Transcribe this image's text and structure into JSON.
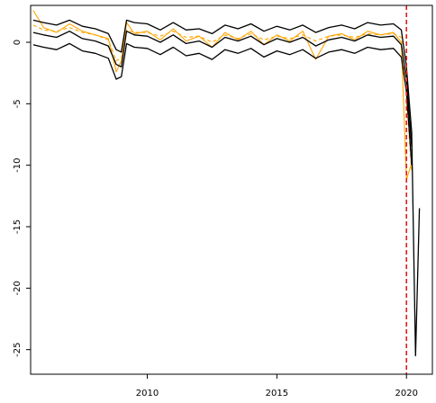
{
  "chart_data": {
    "type": "line",
    "title": "",
    "xlabel": "",
    "ylabel": "",
    "xlim": [
      2005.5,
      2021.0
    ],
    "ylim": [
      -27.0,
      3.0
    ],
    "x_ticks": [
      2010,
      2015,
      2020
    ],
    "x_tick_labels": [
      "2010",
      "2015",
      "2020"
    ],
    "y_ticks": [
      0,
      -5,
      -10,
      -15,
      -20,
      -25
    ],
    "y_tick_labels": [
      "0",
      "-5",
      "-10",
      "-15",
      "-20",
      "-25"
    ],
    "grid": false,
    "legend": "none",
    "vertical_line": {
      "x": 2020.0,
      "color": "#e41a1c",
      "style": "dashed"
    },
    "series": [
      {
        "color": "#ffa500",
        "style": "solid",
        "x": [
          2005.6,
          2006.0,
          2006.5,
          2007.0,
          2007.5,
          2008.0,
          2008.5,
          2008.8,
          2009.0,
          2009.2,
          2009.5,
          2010.0,
          2010.5,
          2011.0,
          2011.5,
          2012.0,
          2012.5,
          2013.0,
          2013.5,
          2014.0,
          2014.5,
          2015.0,
          2015.5,
          2016.0,
          2016.5,
          2017.0,
          2017.5,
          2018.0,
          2018.5,
          2019.0,
          2019.5,
          2019.8,
          2020.0,
          2020.2
        ],
        "y": [
          2.6,
          1.2,
          0.8,
          1.5,
          0.9,
          0.6,
          0.3,
          -2.4,
          -1.5,
          1.6,
          0.7,
          0.9,
          0.2,
          1.1,
          0.1,
          0.5,
          -0.4,
          0.8,
          0.2,
          0.9,
          -0.2,
          0.6,
          0.1,
          0.9,
          -1.4,
          0.5,
          0.7,
          0.2,
          0.9,
          0.6,
          0.8,
          0.0,
          -11.2,
          -9.8
        ]
      },
      {
        "color": "#ffa500",
        "style": "dashed",
        "x": [
          2005.6,
          2006.0,
          2006.5,
          2007.0,
          2007.5,
          2008.0,
          2008.5,
          2008.8,
          2009.0,
          2009.2,
          2009.5,
          2010.0,
          2010.5,
          2011.0,
          2011.5,
          2012.0,
          2012.5,
          2013.0,
          2013.5,
          2014.0,
          2014.5,
          2015.0,
          2015.5,
          2016.0,
          2016.5,
          2017.0,
          2017.5,
          2018.0,
          2018.5,
          2019.0,
          2019.5,
          2019.8,
          2020.0,
          2020.2
        ],
        "y": [
          1.4,
          1.0,
          0.9,
          1.2,
          0.8,
          0.6,
          0.2,
          -1.5,
          -1.3,
          1.0,
          0.8,
          0.8,
          0.5,
          0.9,
          0.4,
          0.5,
          0.0,
          0.6,
          0.3,
          0.7,
          0.2,
          0.5,
          0.3,
          0.6,
          0.1,
          0.5,
          0.6,
          0.4,
          0.7,
          0.6,
          0.7,
          0.4,
          -4.5,
          -10.5
        ]
      },
      {
        "color": "#000000",
        "style": "solid",
        "x": [
          2005.6,
          2006.0,
          2006.5,
          2007.0,
          2007.5,
          2008.0,
          2008.5,
          2008.8,
          2009.0,
          2009.2,
          2009.5,
          2010.0,
          2010.5,
          2011.0,
          2011.5,
          2012.0,
          2012.5,
          2013.0,
          2013.5,
          2014.0,
          2014.5,
          2015.0,
          2015.5,
          2016.0,
          2016.5,
          2017.0,
          2017.5,
          2018.0,
          2018.5,
          2019.0,
          2019.5,
          2019.8,
          2020.0,
          2020.2,
          2020.35,
          2020.5
        ],
        "y": [
          1.8,
          1.6,
          1.4,
          1.8,
          1.3,
          1.1,
          0.7,
          -0.6,
          -0.8,
          1.8,
          1.6,
          1.5,
          1.0,
          1.6,
          1.0,
          1.1,
          0.7,
          1.4,
          1.1,
          1.5,
          0.9,
          1.3,
          1.0,
          1.4,
          0.8,
          1.2,
          1.4,
          1.1,
          1.6,
          1.4,
          1.5,
          1.0,
          -2.0,
          -7.3,
          -25.5,
          -13.5
        ]
      },
      {
        "color": "#000000",
        "style": "solid",
        "x": [
          2005.6,
          2006.0,
          2006.5,
          2007.0,
          2007.5,
          2008.0,
          2008.5,
          2008.8,
          2009.0,
          2009.2,
          2009.5,
          2010.0,
          2010.5,
          2011.0,
          2011.5,
          2012.0,
          2012.5,
          2013.0,
          2013.5,
          2014.0,
          2014.5,
          2015.0,
          2015.5,
          2016.0,
          2016.5,
          2017.0,
          2017.5,
          2018.0,
          2018.5,
          2019.0,
          2019.5,
          2019.8,
          2020.0,
          2020.2
        ],
        "y": [
          0.8,
          0.6,
          0.4,
          0.9,
          0.3,
          0.1,
          -0.3,
          -1.8,
          -2.0,
          0.9,
          0.6,
          0.5,
          0.0,
          0.6,
          -0.1,
          0.1,
          -0.4,
          0.4,
          0.1,
          0.5,
          -0.2,
          0.3,
          0.0,
          0.4,
          -0.3,
          0.2,
          0.4,
          0.1,
          0.6,
          0.4,
          0.5,
          -0.2,
          -3.0,
          -8.5
        ]
      },
      {
        "color": "#000000",
        "style": "solid",
        "x": [
          2005.6,
          2006.0,
          2006.5,
          2007.0,
          2007.5,
          2008.0,
          2008.5,
          2008.8,
          2009.0,
          2009.2,
          2009.5,
          2010.0,
          2010.5,
          2011.0,
          2011.5,
          2012.0,
          2012.5,
          2013.0,
          2013.5,
          2014.0,
          2014.5,
          2015.0,
          2015.5,
          2016.0,
          2016.5,
          2017.0,
          2017.5,
          2018.0,
          2018.5,
          2019.0,
          2019.5,
          2019.8,
          2020.0,
          2020.2
        ],
        "y": [
          -0.2,
          -0.4,
          -0.6,
          -0.1,
          -0.7,
          -0.9,
          -1.3,
          -3.0,
          -2.8,
          -0.1,
          -0.4,
          -0.5,
          -1.0,
          -0.4,
          -1.1,
          -0.9,
          -1.4,
          -0.6,
          -0.9,
          -0.5,
          -1.2,
          -0.7,
          -1.0,
          -0.6,
          -1.3,
          -0.8,
          -0.6,
          -0.9,
          -0.4,
          -0.6,
          -0.5,
          -1.2,
          -4.0,
          -10.0
        ]
      }
    ]
  }
}
